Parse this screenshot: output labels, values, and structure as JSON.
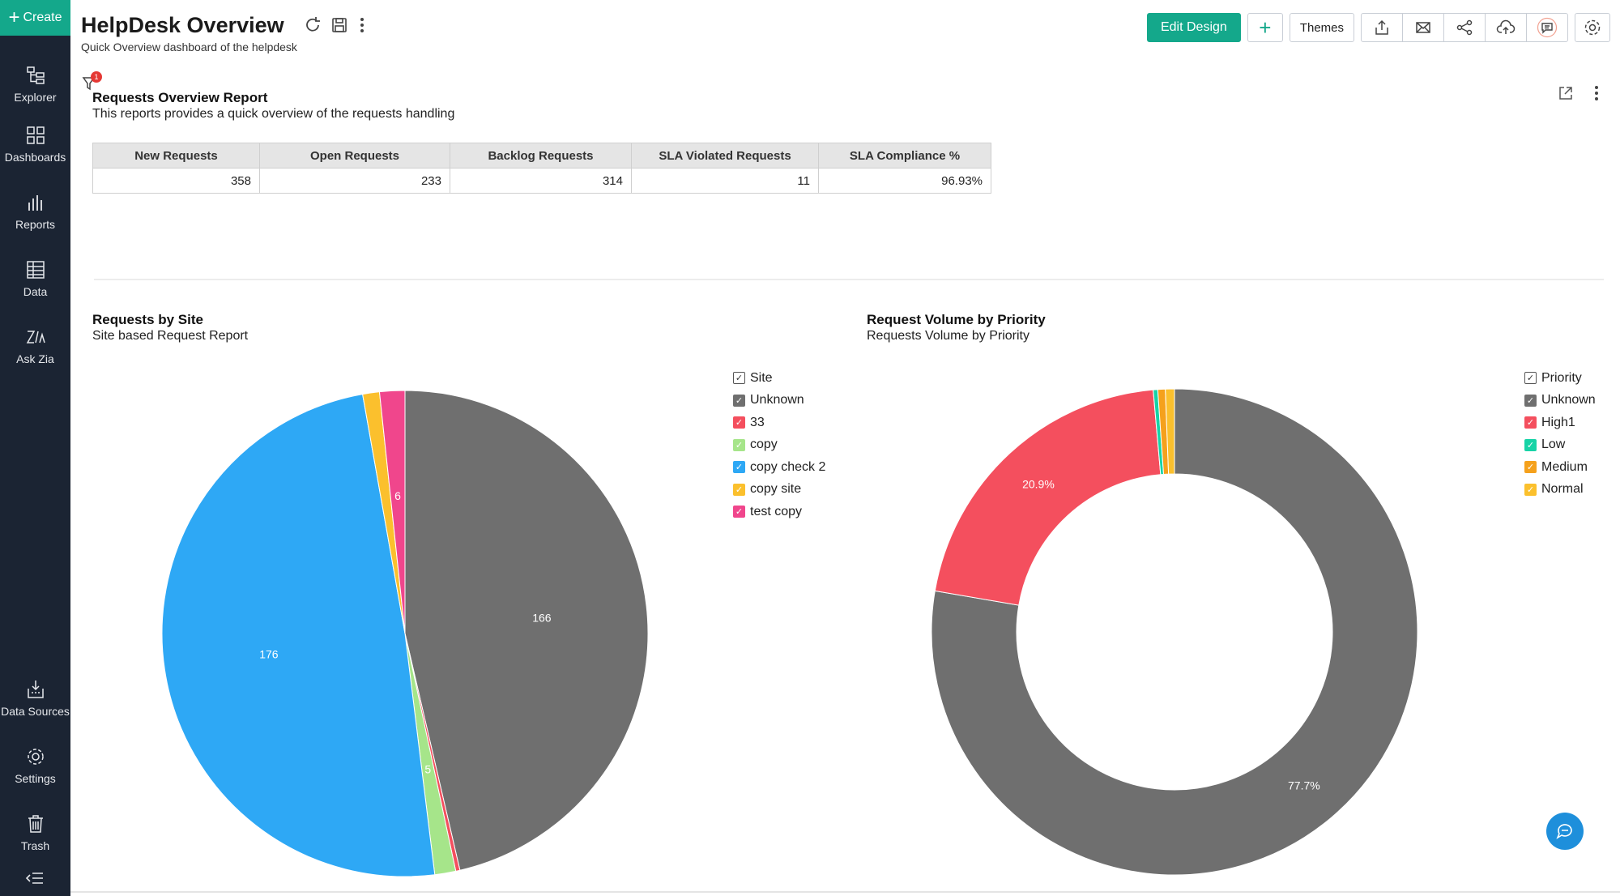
{
  "sidebar": {
    "create_label": "Create",
    "items": [
      {
        "label": "Explorer",
        "icon": "explorer-icon"
      },
      {
        "label": "Dashboards",
        "icon": "dashboards-icon"
      },
      {
        "label": "Reports",
        "icon": "reports-icon"
      },
      {
        "label": "Data",
        "icon": "data-icon"
      },
      {
        "label": "Ask Zia",
        "icon": "ask-zia-icon"
      }
    ],
    "bottom_items": [
      {
        "label": "Data Sources",
        "icon": "data-sources-icon"
      },
      {
        "label": "Settings",
        "icon": "settings-icon"
      },
      {
        "label": "Trash",
        "icon": "trash-icon"
      }
    ]
  },
  "header": {
    "title": "HelpDesk Overview",
    "subtitle": "Quick Overview dashboard of the helpdesk"
  },
  "toolbar": {
    "edit_design_label": "Edit Design",
    "add_label": "+",
    "themes_label": "Themes",
    "icons": [
      "export-icon",
      "email-icon",
      "share-icon",
      "publish-cloud-icon",
      "comment-icon",
      "settings-icon"
    ]
  },
  "filter": {
    "badge": "1"
  },
  "overview_report": {
    "title": "Requests Overview Report",
    "description": "This reports provides a quick overview of the requests handling",
    "columns": [
      "New Requests",
      "Open Requests",
      "Backlog Requests",
      "SLA Violated Requests",
      "SLA Compliance %"
    ],
    "values": [
      "358",
      "233",
      "314",
      "11",
      "96.93%"
    ]
  },
  "site_report": {
    "title": "Requests by Site",
    "description": "Site based Request Report",
    "legend_title": "Site"
  },
  "priority_report": {
    "title": "Request Volume by Priority",
    "description": "Requests Volume by Priority",
    "legend_title": "Priority"
  },
  "chart_data": [
    {
      "type": "pie",
      "title": "Requests by Site",
      "legend_title": "Site",
      "categories": [
        "Unknown",
        "33",
        "copy",
        "copy check 2",
        "copy site",
        "test copy"
      ],
      "values": [
        166,
        1,
        5,
        176,
        4,
        6
      ],
      "data_labels": [
        "166",
        "",
        "5",
        "176",
        "",
        "6"
      ],
      "colors": [
        "#6f6f6f",
        "#f44f5e",
        "#a6e58a",
        "#2ea8f5",
        "#fbc02d",
        "#f0468c"
      ],
      "legend_position": "right"
    },
    {
      "type": "pie",
      "subtype": "donut",
      "title": "Request Volume by Priority",
      "legend_title": "Priority",
      "categories": [
        "Unknown",
        "High1",
        "Low",
        "Medium",
        "Normal"
      ],
      "values": [
        77.7,
        20.9,
        0.3,
        0.5,
        0.6
      ],
      "data_labels": [
        "77.7%",
        "20.9%",
        "",
        "",
        ""
      ],
      "colors": [
        "#6f6f6f",
        "#f44f5e",
        "#17d3a6",
        "#f5a11c",
        "#fbc02d"
      ],
      "legend_position": "right"
    }
  ]
}
